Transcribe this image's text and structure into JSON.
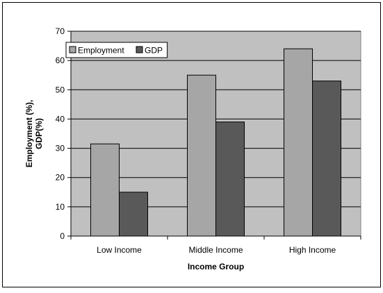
{
  "chart_data": {
    "type": "bar",
    "title": "",
    "xlabel": "Income Group",
    "ylabel": "Employment (%), GDP(%)",
    "ylabel_lines": [
      "Employment (%),",
      "GDP(%)"
    ],
    "categories": [
      "Low Income",
      "Middle Income",
      "High Income"
    ],
    "series": [
      {
        "name": "Employment",
        "values": [
          31.5,
          55,
          64
        ],
        "color": "#a6a6a6"
      },
      {
        "name": "GDP",
        "values": [
          15,
          39,
          53
        ],
        "color": "#595959"
      }
    ],
    "ylim": [
      0,
      70
    ],
    "yticks": [
      0,
      10,
      20,
      30,
      40,
      50,
      60,
      70
    ],
    "grid": true,
    "legend": "top-left",
    "plot_background": "#c0c0c0"
  }
}
